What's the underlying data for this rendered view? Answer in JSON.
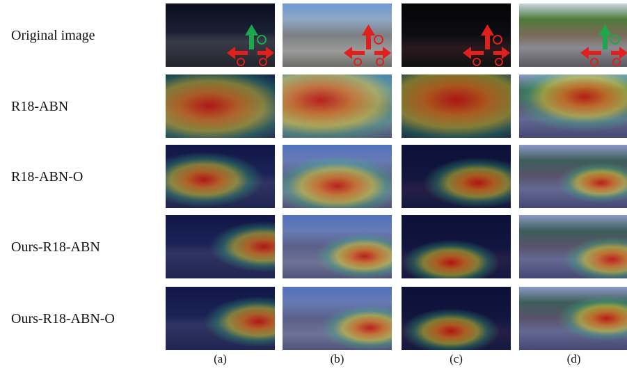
{
  "rows": [
    {
      "label": "Original image"
    },
    {
      "label": "R18-ABN"
    },
    {
      "label": "R18-ABN-O"
    },
    {
      "label": "Ours-R18-ABN"
    },
    {
      "label": "Ours-R18-ABN-O"
    }
  ],
  "columns": [
    "(a)",
    "(b)",
    "(c)",
    "(d)"
  ]
}
